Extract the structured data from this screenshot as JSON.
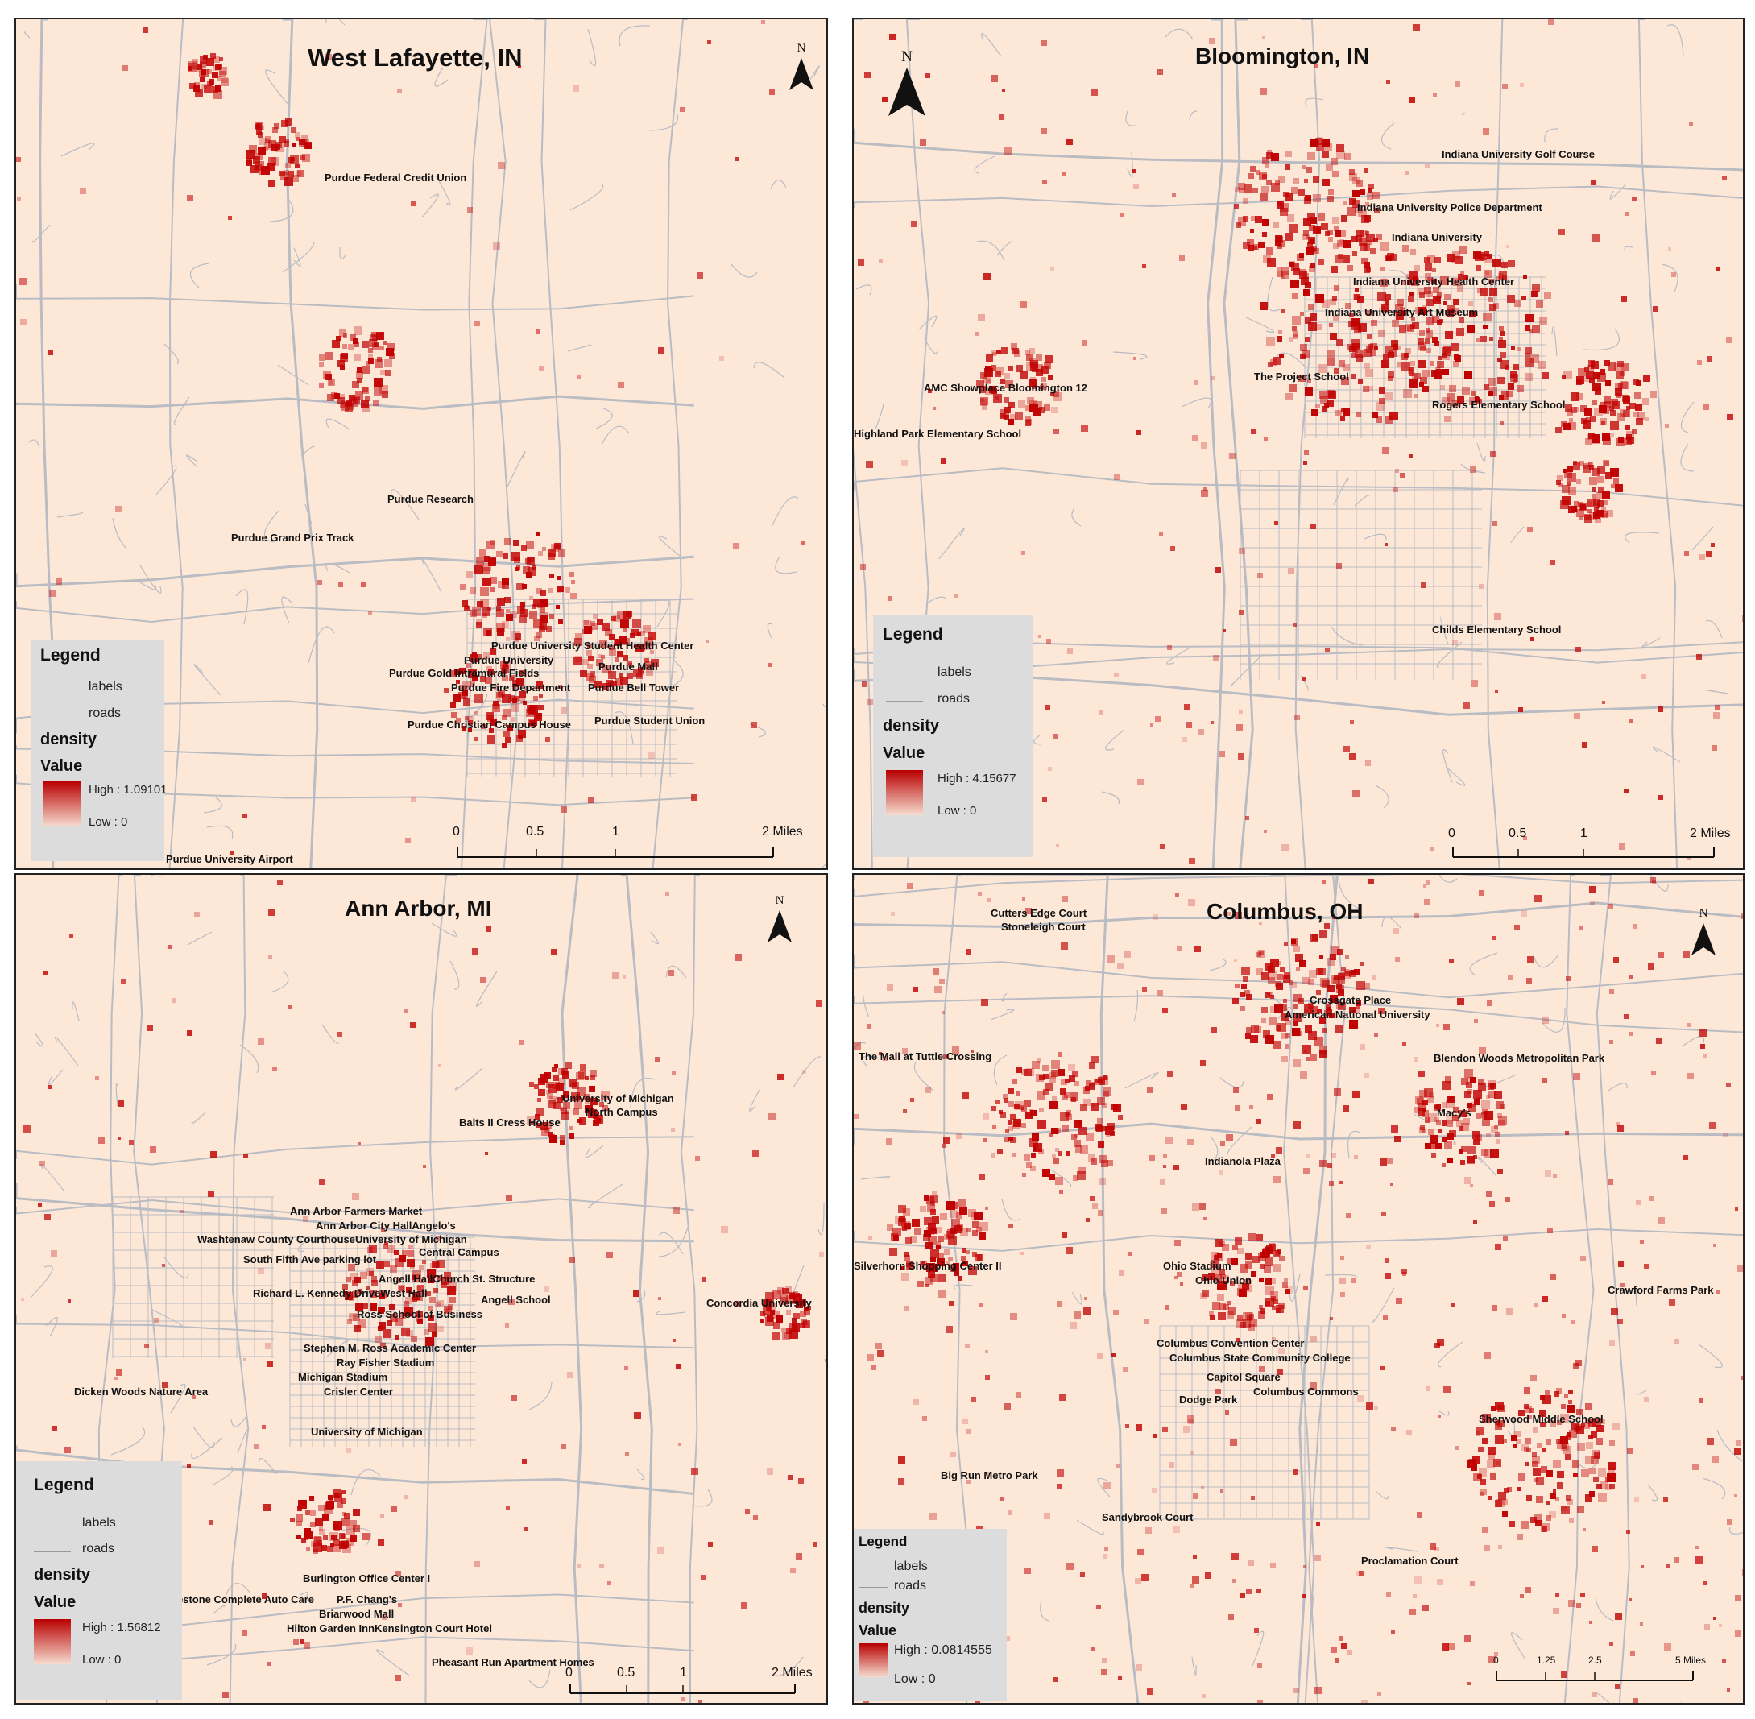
{
  "panels": [
    {
      "title": "West Lafayette, IN",
      "north": "N",
      "labels": [
        "Purdue Federal Credit Union",
        "Purdue Research",
        "Purdue Grand Prix Track",
        "Purdue University Student Health Center",
        "Purdue University",
        "Purdue Gold Intramural Fields",
        "Purdue Mall",
        "Purdue Fire Department",
        "Purdue Bell Tower",
        "Purdue Student Union",
        "Purdue Christian Campus House",
        "Purdue University Airport"
      ],
      "legend": {
        "title": "Legend",
        "labels": "labels",
        "roads": "roads",
        "density": "density",
        "value": "Value",
        "high": "High : 1.09101",
        "low": "Low : 0"
      },
      "scale": [
        "0",
        "0.5",
        "1",
        "2 Miles"
      ]
    },
    {
      "title": "Bloomington, IN",
      "north": "N",
      "labels": [
        "Indiana University Golf Course",
        "Indiana University Police Department",
        "Indiana University",
        "Indiana University Health Center",
        "Indiana University Art Museum",
        "The Project School",
        "AMC Showplace Bloomington 12",
        "Rogers Elementary School",
        "Highland Park Elementary School",
        "Childs Elementary School"
      ],
      "legend": {
        "title": "Legend",
        "labels": "labels",
        "roads": "roads",
        "density": "density",
        "value": "Value",
        "high": "High : 4.15677",
        "low": "Low : 0"
      },
      "scale": [
        "0",
        "0.5",
        "1",
        "2 Miles"
      ]
    },
    {
      "title": "Ann Arbor, MI",
      "north": "N",
      "labels": [
        "University of Michigan",
        "North Campus",
        "Baits II Cress House",
        "Ann Arbor Farmers Market",
        "Ann Arbor City HallAngelo's",
        "Washtenaw County CourthouseUniversity of Michigan",
        "Central Campus",
        "South Fifth Ave parking lot",
        "Angell HallChurch St. Structure",
        "Richard L. Kennedy DriveWest Hall",
        "Angell School",
        "Ross School of Business",
        "Concordia University",
        "Stephen M. Ross Academic Center",
        "Ray Fisher Stadium",
        "Michigan Stadium",
        "Crisler Center",
        "Dicken Woods Nature Area",
        "University of Michigan",
        "Burlington Office Center I",
        "estone Complete Auto Care",
        "P.F. Chang's",
        "Briarwood Mall",
        "Hilton Garden InnKensington Court Hotel",
        "Pheasant Run Apartment Homes"
      ],
      "legend": {
        "title": "Legend",
        "labels": "labels",
        "roads": "roads",
        "density": "density",
        "value": "Value",
        "high": "High : 1.56812",
        "low": "Low : 0"
      },
      "scale": [
        "0",
        "0.5",
        "1",
        "2 Miles"
      ]
    },
    {
      "title": "Columbus, OH",
      "north": "N",
      "labels": [
        "Cutters Edge Court",
        "Stoneleigh Court",
        "Crossgate Place",
        "American National University",
        "The Mall at Tuttle Crossing",
        "Blendon Woods Metropolitan Park",
        "Macy's",
        "Indianola Plaza",
        "Silverhorn Shopping Center II",
        "Ohio Stadium",
        "Ohio Union",
        "Crawford Farms Park",
        "Columbus Convention Center",
        "Columbus State Community College",
        "Capitol Square",
        "Dodge Park",
        "Columbus Commons",
        "Sherwood Middle School",
        "Big Run Metro Park",
        "Sandybrook Court",
        "Proclamation Court"
      ],
      "legend": {
        "title": "Legend",
        "labels": "labels",
        "roads": "roads",
        "density": "density",
        "value": "Value",
        "high": "High : 0.0814555",
        "low": "Low : 0"
      },
      "scale": [
        "0",
        "1.25",
        "2.5",
        "5 Miles"
      ]
    }
  ],
  "colors": {
    "background": "#fde8d8",
    "roads": "#b9bcc3",
    "hotspot": "#c00000",
    "legend_bg": "#dcdcdc"
  }
}
